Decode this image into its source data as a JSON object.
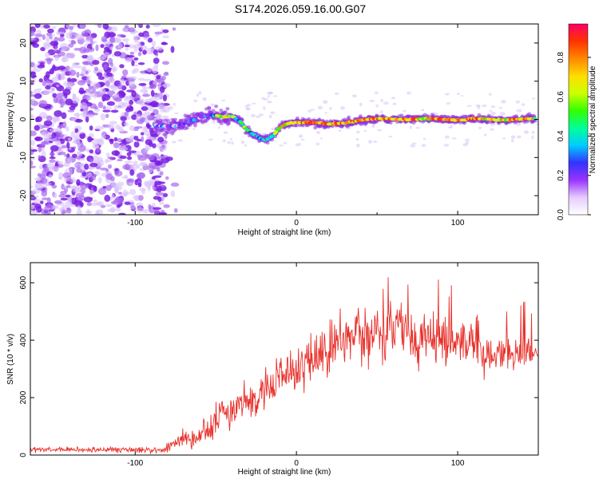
{
  "figure_title": "S174.2026.059.16.00.G07",
  "colors": {
    "snr_line": "#e8302a",
    "scatter": "#8a2be2",
    "axis": "#000000"
  },
  "colorbar_stops": [
    "#ffffff",
    "#e6ccff",
    "#9933ff",
    "#3333ff",
    "#00ccff",
    "#00ff99",
    "#33ff00",
    "#ccff00",
    "#ffdd00",
    "#ff8800",
    "#ff3300",
    "#ff0066"
  ],
  "chart_data": [
    {
      "type": "heatmap",
      "title": "S174.2026.059.16.00.G07",
      "xlabel": "Height of straight line (km)",
      "ylabel": "Frequency (Hz)",
      "xlim": [
        -165,
        150
      ],
      "ylim": [
        -25,
        25
      ],
      "x_ticks": [
        -100,
        0,
        100
      ],
      "y_ticks": [
        -20,
        -10,
        0,
        10,
        20
      ],
      "colorbar": {
        "label": "Normalized spectral amplitude",
        "range": [
          0,
          0.97
        ],
        "ticks": [
          0.0,
          0.2,
          0.4,
          0.6,
          0.8
        ]
      },
      "noise_region_x": [
        -165,
        -80
      ],
      "ridge": {
        "x": [
          -88,
          -80,
          -72,
          -66,
          -60,
          -55,
          -50,
          -45,
          -40,
          -35,
          -30,
          -25,
          -20,
          -15,
          -10,
          -5,
          0,
          10,
          20,
          30,
          40,
          50,
          60,
          70,
          80,
          90,
          100,
          110,
          120,
          130,
          140,
          148
        ],
        "freq": [
          -1.5,
          -2,
          -1.5,
          -0.5,
          0.5,
          1.2,
          1.0,
          0.6,
          0.8,
          -0.5,
          -3,
          -4.5,
          -5.5,
          -4.5,
          -2,
          -1,
          -0.8,
          -0.8,
          -1.2,
          -1.0,
          -0.2,
          0.2,
          0.1,
          0.0,
          0.2,
          0.1,
          -0.2,
          0.2,
          0.0,
          -0.2,
          0.1,
          0.2
        ],
        "amp": [
          0.35,
          0.25,
          0.3,
          0.4,
          0.25,
          0.3,
          0.45,
          0.8,
          0.6,
          0.5,
          0.55,
          0.4,
          0.3,
          0.5,
          0.7,
          0.65,
          0.7,
          0.9,
          0.85,
          0.75,
          0.85,
          0.8,
          0.8,
          0.9,
          0.75,
          0.85,
          0.8,
          0.95,
          0.7,
          0.75,
          0.85,
          0.65
        ]
      }
    },
    {
      "type": "line",
      "xlabel": "Height of straight line (km)",
      "ylabel": "SNR (10 * v/v)",
      "xlim": [
        -165,
        150
      ],
      "ylim": [
        0,
        670
      ],
      "x_ticks": [
        -100,
        0,
        100
      ],
      "y_ticks": [
        0,
        200,
        400,
        600
      ],
      "trend": {
        "x": [
          -165,
          -120,
          -82,
          -75,
          -70,
          -66,
          -60,
          -50,
          -40,
          -30,
          -20,
          -10,
          0,
          10,
          20,
          30,
          40,
          50,
          60,
          70,
          80,
          90,
          100,
          110,
          120,
          130,
          140,
          150
        ],
        "snr": [
          18,
          18,
          18,
          40,
          70,
          45,
          70,
          120,
          160,
          190,
          220,
          260,
          300,
          340,
          370,
          395,
          420,
          430,
          440,
          420,
          410,
          400,
          385,
          370,
          360,
          355,
          350,
          360
        ],
        "spread": [
          10,
          10,
          12,
          25,
          30,
          30,
          45,
          60,
          70,
          75,
          80,
          80,
          85,
          85,
          90,
          95,
          100,
          110,
          120,
          115,
          100,
          90,
          80,
          75,
          70,
          65,
          60,
          55
        ]
      }
    }
  ]
}
